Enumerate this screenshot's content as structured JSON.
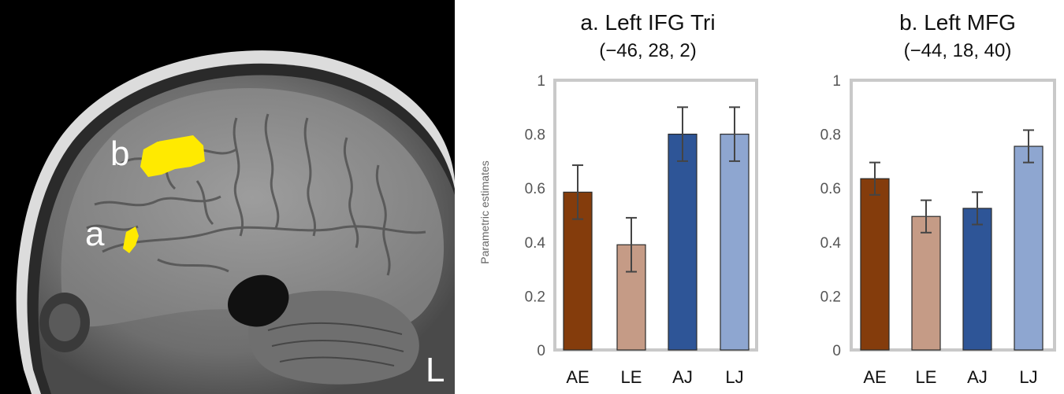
{
  "image_labels": {
    "region_a": "a",
    "region_b": "b",
    "hemisphere": "L"
  },
  "colors": {
    "AE": "#843c0c",
    "LE": "#c59b86",
    "AJ": "#2e5597",
    "LJ": "#8ea6d0",
    "highlight": "#ffea00",
    "frame": "#c9c9c9",
    "error_bar": "#444444"
  },
  "chart_data": [
    {
      "type": "bar",
      "title": "a. Left IFG Tri",
      "subtitle": "(−46, 28, 2)",
      "ylabel": "Parametric estimates",
      "categories": [
        "AE",
        "LE",
        "AJ",
        "LJ"
      ],
      "values": [
        0.585,
        0.39,
        0.8,
        0.8
      ],
      "errors": [
        0.1,
        0.1,
        0.1,
        0.1
      ],
      "ylim": [
        0,
        1
      ],
      "yticks": [
        "0",
        "0.2",
        "0.4",
        "0.6",
        "0.8",
        "1"
      ],
      "grid": false
    },
    {
      "type": "bar",
      "title": "b. Left MFG",
      "subtitle": "(−44, 18, 40)",
      "ylabel": "",
      "categories": [
        "AE",
        "LE",
        "AJ",
        "LJ"
      ],
      "values": [
        0.635,
        0.495,
        0.525,
        0.755
      ],
      "errors": [
        0.06,
        0.06,
        0.06,
        0.06
      ],
      "ylim": [
        0,
        1
      ],
      "yticks": [
        "0",
        "0.2",
        "0.4",
        "0.6",
        "0.8",
        "1"
      ],
      "grid": false
    }
  ]
}
